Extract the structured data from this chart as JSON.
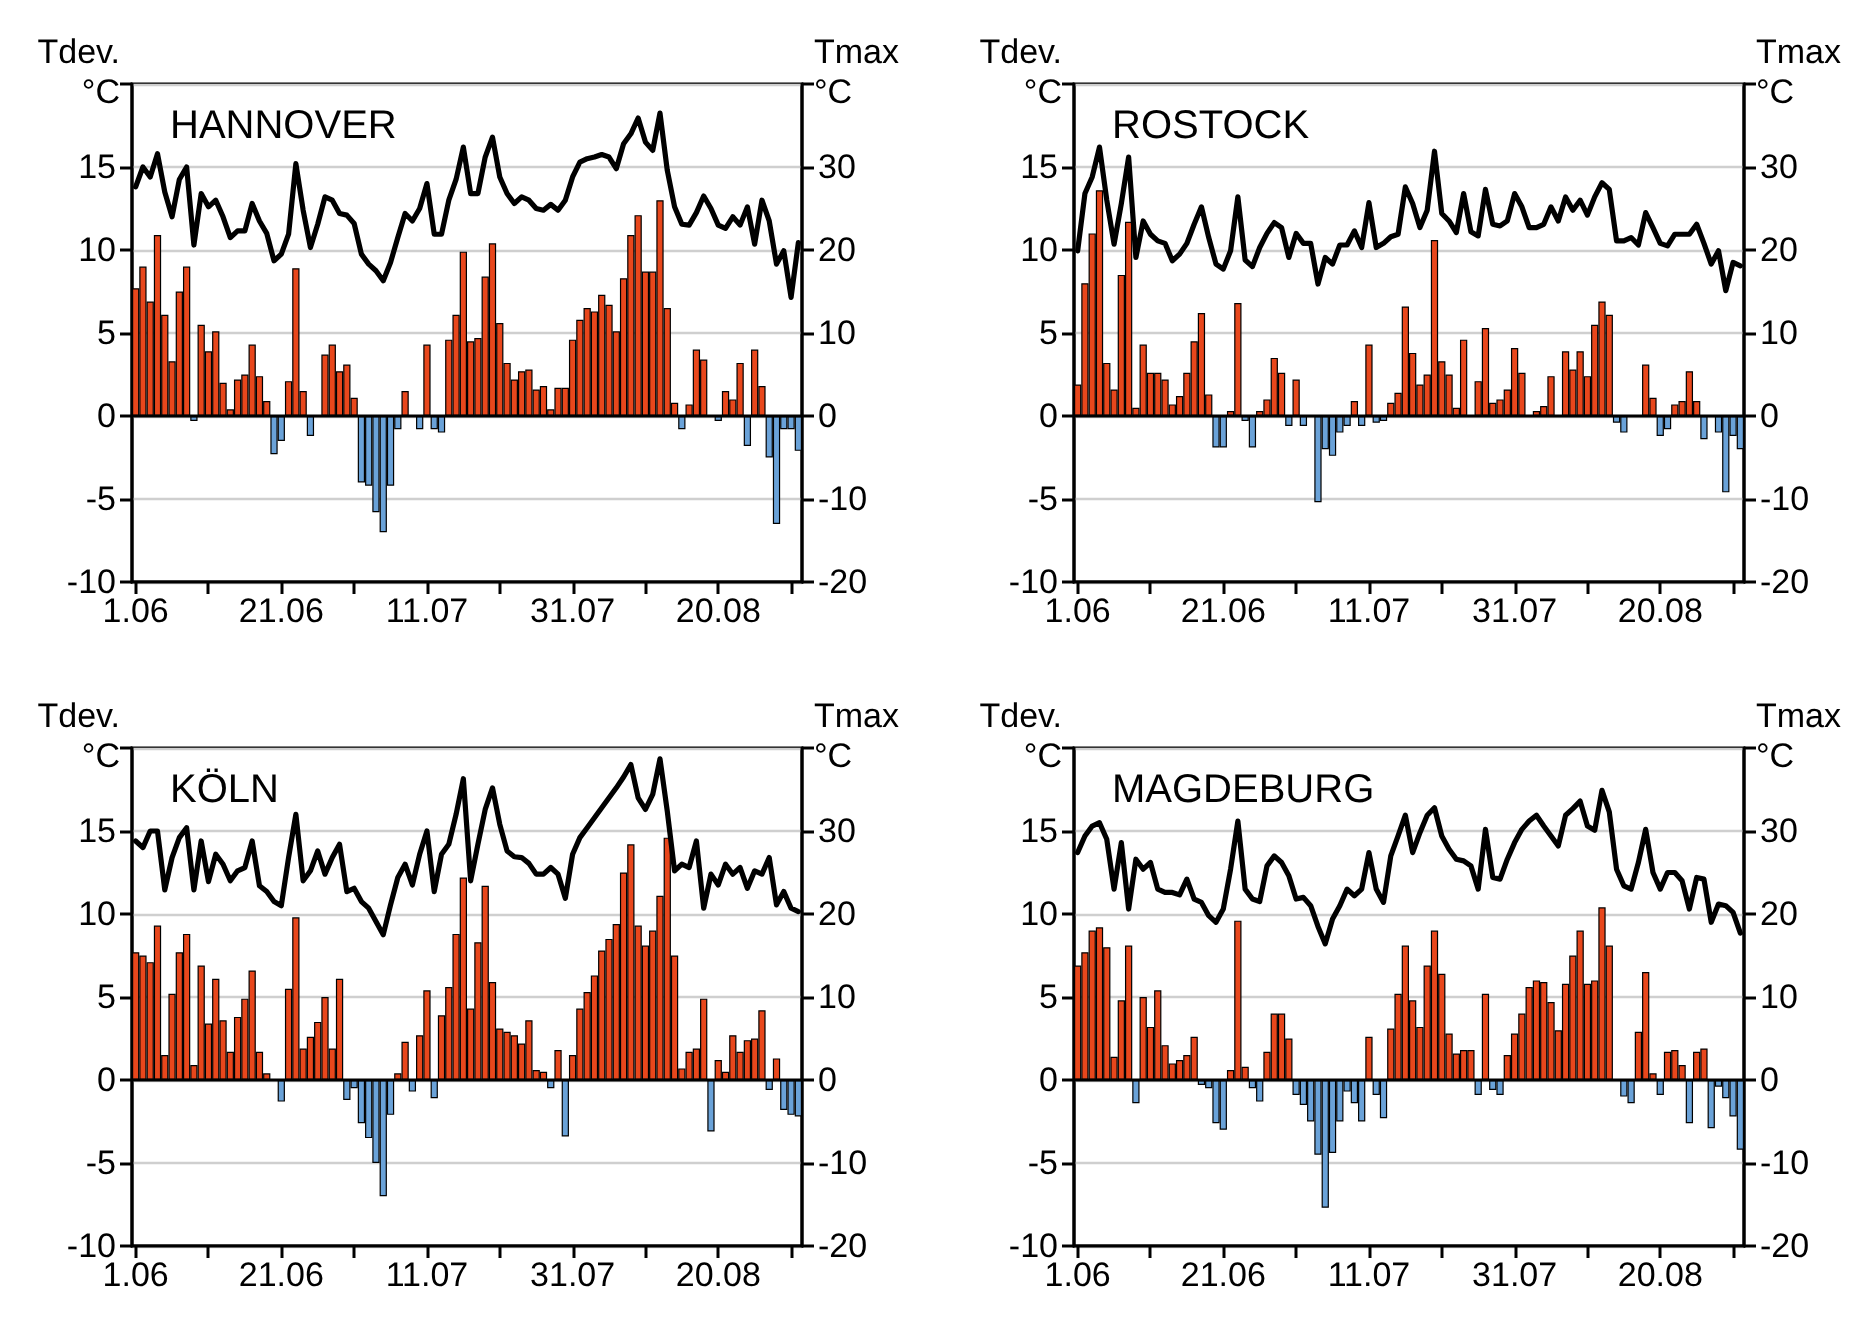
{
  "chart_data": [
    {
      "type": "bar",
      "title": "HANNOVER",
      "ylabel": "Tdev.\n°C",
      "y2label": "Tmax\n°C",
      "stacked": true,
      "grid": "y",
      "categories": [
        "1.06",
        null,
        null,
        null,
        null,
        null,
        null,
        null,
        null,
        null,
        null,
        null,
        null,
        null,
        null,
        null,
        null,
        null,
        null,
        null,
        "21.06",
        null,
        null,
        null,
        null,
        null,
        null,
        null,
        null,
        null,
        null,
        null,
        null,
        null,
        null,
        null,
        null,
        null,
        null,
        null,
        "11.07",
        null,
        null,
        null,
        null,
        null,
        null,
        null,
        null,
        null,
        null,
        null,
        null,
        null,
        null,
        null,
        null,
        null,
        null,
        null,
        "31.07",
        null,
        null,
        null,
        null,
        null,
        null,
        null,
        null,
        null,
        null,
        null,
        null,
        null,
        null,
        null,
        null,
        null,
        null,
        null,
        "20.08",
        null,
        null,
        null,
        null,
        null,
        null,
        null,
        null,
        null,
        null,
        null
      ],
      "ylim": [
        -10,
        20
      ],
      "yticks": [
        -10,
        -5,
        0,
        5,
        10,
        15
      ],
      "y2lim": [
        -20,
        40
      ],
      "y2ticks": [
        -20,
        -10,
        0,
        10,
        20,
        30
      ],
      "ref_lines": [
        {
          "axis": "y",
          "value": 0,
          "color": "#000000"
        }
      ],
      "series": [
        {
          "color": "#e8471c",
          "values": [
            7.7,
            9.0,
            6.9,
            10.9,
            6.1,
            3.3,
            7.5,
            9.0,
            null,
            5.5,
            3.9,
            5.1,
            2.0,
            0.4,
            2.2,
            2.5,
            4.3,
            2.4,
            0.9,
            null,
            null,
            2.1,
            8.9,
            1.5,
            null,
            null,
            3.7,
            4.3,
            2.7,
            3.1,
            1.1,
            null,
            null,
            null,
            null,
            null,
            null,
            1.5,
            null,
            null,
            4.3,
            null,
            null,
            4.6,
            6.1,
            9.9,
            4.5,
            4.7,
            8.4,
            10.4,
            5.6,
            3.2,
            2.2,
            2.7,
            2.8,
            1.6,
            1.8,
            0.4,
            1.7,
            1.7,
            4.6,
            5.8,
            6.5,
            6.3,
            7.3,
            6.7,
            5.1,
            8.3,
            10.9,
            12.1,
            8.7,
            8.7,
            13.0,
            6.5,
            0.8,
            null,
            0.7,
            4.0,
            3.4,
            null,
            null,
            1.5,
            1.0,
            3.2,
            null,
            4.0,
            1.8,
            null,
            null,
            null,
            null,
            null
          ]
        },
        {
          "color": "#6aa2d8",
          "values": [
            null,
            null,
            null,
            null,
            null,
            null,
            null,
            null,
            -0.3,
            null,
            null,
            null,
            null,
            null,
            null,
            null,
            null,
            null,
            null,
            -2.3,
            -1.5,
            null,
            null,
            null,
            -1.2,
            null,
            null,
            null,
            null,
            null,
            null,
            -4.0,
            -4.2,
            -5.8,
            -7.0,
            -4.2,
            -0.8,
            null,
            null,
            -0.8,
            null,
            -0.8,
            -1.0,
            null,
            null,
            null,
            null,
            null,
            null,
            null,
            null,
            null,
            null,
            null,
            null,
            null,
            null,
            null,
            null,
            null,
            null,
            null,
            null,
            null,
            null,
            null,
            null,
            null,
            null,
            null,
            null,
            null,
            null,
            null,
            null,
            -0.8,
            null,
            null,
            null,
            null,
            -0.3,
            null,
            null,
            null,
            -1.8,
            null,
            null,
            -2.5,
            -6.5,
            -0.8,
            -0.8,
            -2.1
          ]
        },
        {
          "type": "line",
          "axis": "y2",
          "color": "#000000",
          "values": [
            27.6,
            30,
            28.8,
            31.6,
            27,
            24,
            28.5,
            30,
            20.6,
            26.8,
            25.2,
            26,
            24,
            21.5,
            22.3,
            22.3,
            25.6,
            23.5,
            22,
            18.7,
            19.5,
            21.9,
            30.4,
            24.8,
            20.3,
            23.1,
            26.4,
            26,
            24.4,
            24.2,
            23.2,
            19.5,
            18.3,
            17.5,
            16.3,
            18.5,
            21.5,
            24.4,
            23.5,
            25,
            28,
            21.9,
            21.9,
            26,
            28.5,
            32.4,
            26.8,
            26.8,
            31.2,
            33.6,
            28.8,
            26.8,
            25.6,
            26.4,
            26,
            25,
            24.8,
            25.5,
            24.8,
            26,
            28.8,
            30.6,
            31,
            31.2,
            31.5,
            31.2,
            29.8,
            32.8,
            34,
            35.9,
            33,
            32,
            36.5,
            29.6,
            25.2,
            23.1,
            23,
            24.5,
            26.5,
            25,
            23,
            22.6,
            24,
            23,
            25.2,
            20.7,
            26,
            23.5,
            18.3,
            19.9,
            14.3,
            20.9
          ]
        }
      ]
    },
    {
      "type": "bar",
      "title": "ROSTOCK",
      "ylabel": "Tdev.\n°C",
      "y2label": "Tmax\n°C",
      "stacked": true,
      "grid": "y",
      "categories": [
        "1.06",
        null,
        null,
        null,
        null,
        null,
        null,
        null,
        null,
        null,
        null,
        null,
        null,
        null,
        null,
        null,
        null,
        null,
        null,
        null,
        "21.06",
        null,
        null,
        null,
        null,
        null,
        null,
        null,
        null,
        null,
        null,
        null,
        null,
        null,
        null,
        null,
        null,
        null,
        null,
        null,
        "11.07",
        null,
        null,
        null,
        null,
        null,
        null,
        null,
        null,
        null,
        null,
        null,
        null,
        null,
        null,
        null,
        null,
        null,
        null,
        null,
        "31.07",
        null,
        null,
        null,
        null,
        null,
        null,
        null,
        null,
        null,
        null,
        null,
        null,
        null,
        null,
        null,
        null,
        null,
        null,
        null,
        "20.08",
        null,
        null,
        null,
        null,
        null,
        null,
        null,
        null,
        null,
        null,
        null
      ],
      "ylim": [
        -10,
        20
      ],
      "yticks": [
        -10,
        -5,
        0,
        5,
        10,
        15
      ],
      "y2lim": [
        -20,
        40
      ],
      "y2ticks": [
        -20,
        -10,
        0,
        10,
        20,
        30
      ],
      "ref_lines": [
        {
          "axis": "y",
          "value": 0,
          "color": "#000000"
        }
      ],
      "series": [
        {
          "color": "#e8471c",
          "values": [
            1.9,
            8.0,
            11.0,
            13.6,
            3.2,
            1.6,
            8.5,
            11.7,
            0.5,
            4.3,
            2.6,
            2.6,
            2.2,
            0.7,
            1.2,
            2.6,
            4.5,
            6.2,
            1.3,
            null,
            null,
            0.3,
            6.8,
            null,
            null,
            0.3,
            1.0,
            3.5,
            2.6,
            null,
            2.2,
            null,
            null,
            null,
            null,
            null,
            null,
            null,
            0.9,
            null,
            4.3,
            null,
            null,
            0.8,
            1.4,
            6.6,
            3.8,
            1.9,
            2.5,
            10.6,
            3.3,
            2.5,
            0.5,
            4.6,
            null,
            2.1,
            5.3,
            0.8,
            1.0,
            1.6,
            4.1,
            2.6,
            null,
            0.3,
            0.6,
            2.4,
            null,
            3.9,
            2.8,
            3.9,
            2.4,
            5.5,
            6.9,
            6.1,
            null,
            null,
            null,
            null,
            3.1,
            1.1,
            null,
            null,
            0.7,
            0.9,
            2.7,
            0.9,
            null,
            null,
            null,
            null,
            null,
            null
          ]
        },
        {
          "color": "#6aa2d8",
          "values": [
            null,
            null,
            null,
            null,
            null,
            null,
            null,
            null,
            null,
            null,
            null,
            null,
            null,
            null,
            null,
            null,
            null,
            null,
            null,
            -1.9,
            -1.9,
            null,
            null,
            -0.3,
            -1.9,
            null,
            null,
            null,
            null,
            -0.6,
            null,
            -0.6,
            null,
            -5.2,
            -2.0,
            -2.4,
            -1.0,
            -0.6,
            null,
            -0.6,
            null,
            -0.4,
            -0.3,
            null,
            null,
            null,
            null,
            null,
            null,
            null,
            null,
            null,
            null,
            null,
            null,
            null,
            null,
            null,
            null,
            null,
            null,
            null,
            null,
            null,
            null,
            null,
            null,
            null,
            null,
            null,
            null,
            null,
            null,
            null,
            -0.4,
            -1.0,
            null,
            null,
            null,
            null,
            -1.2,
            -0.8,
            null,
            null,
            null,
            null,
            -1.4,
            null,
            -1.0,
            -4.6,
            -1.2,
            -2.0
          ]
        },
        {
          "type": "line",
          "axis": "y2",
          "color": "#000000",
          "values": [
            19.9,
            26.8,
            28.8,
            32.4,
            26,
            20.7,
            25.6,
            31.2,
            19.1,
            23.5,
            21.9,
            21.1,
            20.8,
            18.7,
            19.5,
            20.8,
            23.1,
            25.2,
            21.5,
            18.3,
            17.7,
            19.9,
            26.4,
            18.8,
            18,
            20.3,
            22,
            23.3,
            22.7,
            19.1,
            22,
            20.8,
            20.8,
            15.9,
            19.1,
            18.3,
            20.6,
            20.6,
            22.3,
            20.3,
            25.7,
            20.3,
            20.8,
            21.6,
            21.9,
            27.6,
            25.6,
            22.7,
            24.8,
            31.9,
            24.4,
            23.5,
            22.1,
            26.8,
            22.2,
            21.7,
            27.3,
            23.1,
            22.9,
            23.5,
            26.8,
            25.2,
            22.7,
            22.7,
            23.1,
            25.2,
            23.5,
            26.4,
            24.8,
            26,
            24.2,
            26.4,
            28.1,
            27.3,
            21.1,
            21.1,
            21.5,
            20.6,
            24.5,
            22.7,
            20.8,
            20.5,
            21.9,
            21.9,
            21.9,
            23.1,
            20.8,
            18.3,
            19.9,
            15.1,
            18.5,
            18.1
          ]
        }
      ]
    },
    {
      "type": "bar",
      "title": "KÖLN",
      "ylabel": "Tdev.\n°C",
      "y2label": "Tmax\n°C",
      "stacked": true,
      "grid": "y",
      "categories": [
        "1.06",
        null,
        null,
        null,
        null,
        null,
        null,
        null,
        null,
        null,
        null,
        null,
        null,
        null,
        null,
        null,
        null,
        null,
        null,
        null,
        "21.06",
        null,
        null,
        null,
        null,
        null,
        null,
        null,
        null,
        null,
        null,
        null,
        null,
        null,
        null,
        null,
        null,
        null,
        null,
        null,
        "11.07",
        null,
        null,
        null,
        null,
        null,
        null,
        null,
        null,
        null,
        null,
        null,
        null,
        null,
        null,
        null,
        null,
        null,
        null,
        null,
        "31.07",
        null,
        null,
        null,
        null,
        null,
        null,
        null,
        null,
        null,
        null,
        null,
        null,
        null,
        null,
        null,
        null,
        null,
        null,
        null,
        "20.08",
        null,
        null,
        null,
        null,
        null,
        null,
        null,
        null,
        null,
        null,
        null
      ],
      "ylim": [
        -10,
        20
      ],
      "yticks": [
        -10,
        -5,
        0,
        5,
        10,
        15
      ],
      "y2lim": [
        -20,
        40
      ],
      "y2ticks": [
        -20,
        -10,
        0,
        10,
        20,
        30
      ],
      "ref_lines": [
        {
          "axis": "y",
          "value": 0,
          "color": "#000000"
        }
      ],
      "series": [
        {
          "color": "#e8471c",
          "values": [
            7.7,
            7.5,
            7.1,
            9.3,
            1.5,
            5.2,
            7.7,
            8.8,
            0.9,
            6.9,
            3.4,
            6.1,
            3.6,
            1.7,
            3.8,
            4.9,
            6.6,
            1.7,
            0.4,
            null,
            null,
            5.5,
            9.8,
            1.9,
            2.6,
            3.5,
            5.0,
            1.9,
            6.1,
            null,
            null,
            null,
            null,
            null,
            null,
            null,
            0.4,
            2.3,
            null,
            2.7,
            5.4,
            null,
            3.9,
            5.6,
            8.8,
            12.2,
            4.3,
            8.3,
            11.7,
            5.9,
            3.1,
            2.9,
            2.7,
            2.2,
            3.6,
            0.6,
            0.5,
            null,
            1.8,
            null,
            1.5,
            4.3,
            5.3,
            6.3,
            7.8,
            8.5,
            9.4,
            12.5,
            14.2,
            9.3,
            8.1,
            9.0,
            11.1,
            14.6,
            7.5,
            0.7,
            1.7,
            1.9,
            4.9,
            null,
            1.2,
            0.5,
            2.7,
            1.7,
            2.4,
            2.5,
            4.2,
            null,
            1.3,
            null,
            null,
            null
          ]
        },
        {
          "color": "#6aa2d8",
          "values": [
            null,
            null,
            null,
            null,
            null,
            null,
            null,
            null,
            null,
            null,
            null,
            null,
            null,
            null,
            null,
            null,
            null,
            null,
            null,
            null,
            -1.3,
            null,
            null,
            null,
            null,
            null,
            null,
            null,
            null,
            -1.2,
            -0.5,
            -2.6,
            -3.5,
            -5.0,
            -7.0,
            -2.1,
            null,
            null,
            -0.7,
            null,
            null,
            -1.1,
            null,
            null,
            null,
            null,
            null,
            null,
            null,
            null,
            null,
            null,
            null,
            null,
            null,
            null,
            null,
            -0.5,
            null,
            -3.4,
            null,
            null,
            null,
            null,
            null,
            null,
            null,
            null,
            null,
            null,
            null,
            null,
            null,
            null,
            null,
            null,
            null,
            null,
            null,
            -3.1,
            null,
            null,
            null,
            null,
            null,
            null,
            null,
            -0.6,
            null,
            -1.8,
            -2.1,
            -2.2
          ]
        },
        {
          "type": "line",
          "axis": "y2",
          "color": "#000000",
          "values": [
            28.8,
            28,
            30,
            30,
            22.9,
            26.8,
            29.2,
            30.4,
            22.9,
            28.8,
            23.9,
            27.2,
            26,
            24,
            25.2,
            25.6,
            28.8,
            23.4,
            22.7,
            21.5,
            21,
            26.8,
            32,
            24,
            25.2,
            27.6,
            24.8,
            26.8,
            28.4,
            22.7,
            23.1,
            21.5,
            20.7,
            19.1,
            17.5,
            21.1,
            24.4,
            26,
            23.5,
            27.2,
            30,
            22.7,
            27.2,
            28.4,
            32,
            36.3,
            24,
            28.4,
            32.6,
            35.2,
            30.8,
            27.6,
            26.9,
            26.8,
            26.1,
            24.8,
            24.8,
            25.6,
            24.8,
            21.9,
            27.2,
            29.2,
            30.4,
            31.6,
            32.8,
            34,
            35.2,
            36.5,
            38,
            34,
            32.6,
            34.4,
            38.7,
            32.4,
            25.2,
            26,
            25.6,
            28.8,
            20.7,
            24.8,
            23.5,
            26,
            24.8,
            25.6,
            23.1,
            25.2,
            24.8,
            26.8,
            21.1,
            22.7,
            20.7,
            20.3
          ]
        }
      ]
    },
    {
      "type": "bar",
      "title": "MAGDEBURG",
      "ylabel": "Tdev.\n°C",
      "y2label": "Tmax\n°C",
      "stacked": true,
      "grid": "y",
      "categories": [
        "1.06",
        null,
        null,
        null,
        null,
        null,
        null,
        null,
        null,
        null,
        null,
        null,
        null,
        null,
        null,
        null,
        null,
        null,
        null,
        null,
        "21.06",
        null,
        null,
        null,
        null,
        null,
        null,
        null,
        null,
        null,
        null,
        null,
        null,
        null,
        null,
        null,
        null,
        null,
        null,
        null,
        "11.07",
        null,
        null,
        null,
        null,
        null,
        null,
        null,
        null,
        null,
        null,
        null,
        null,
        null,
        null,
        null,
        null,
        null,
        null,
        null,
        "31.07",
        null,
        null,
        null,
        null,
        null,
        null,
        null,
        null,
        null,
        null,
        null,
        null,
        null,
        null,
        null,
        null,
        null,
        null,
        null,
        "20.08",
        null,
        null,
        null,
        null,
        null,
        null,
        null,
        null,
        null,
        null,
        null
      ],
      "ylim": [
        -10,
        20
      ],
      "yticks": [
        -10,
        -5,
        0,
        5,
        10,
        15
      ],
      "y2lim": [
        -20,
        40
      ],
      "y2ticks": [
        -20,
        -10,
        0,
        10,
        20,
        30
      ],
      "ref_lines": [
        {
          "axis": "y",
          "value": 0,
          "color": "#000000"
        }
      ],
      "series": [
        {
          "color": "#e8471c",
          "values": [
            6.9,
            7.7,
            9.0,
            9.2,
            8.0,
            1.4,
            4.8,
            8.1,
            null,
            5.0,
            3.2,
            5.4,
            2.1,
            1.0,
            1.2,
            1.5,
            2.6,
            null,
            null,
            null,
            null,
            0.6,
            9.6,
            0.8,
            null,
            null,
            1.7,
            4.0,
            4.0,
            2.5,
            null,
            null,
            null,
            null,
            null,
            null,
            null,
            null,
            null,
            null,
            2.6,
            null,
            null,
            3.1,
            5.2,
            8.1,
            4.8,
            3.2,
            6.9,
            9.0,
            6.4,
            2.8,
            1.6,
            1.8,
            1.8,
            null,
            5.2,
            null,
            null,
            1.5,
            2.8,
            4.0,
            5.6,
            6.0,
            5.9,
            4.7,
            3.0,
            5.8,
            7.5,
            9.0,
            5.8,
            6.0,
            10.4,
            8.1,
            null,
            null,
            null,
            2.9,
            6.5,
            0.4,
            null,
            1.7,
            1.8,
            0.9,
            null,
            1.7,
            1.9,
            null,
            null,
            null,
            null,
            null
          ]
        },
        {
          "color": "#6aa2d8",
          "values": [
            null,
            null,
            null,
            null,
            null,
            null,
            null,
            null,
            -1.4,
            null,
            null,
            null,
            null,
            null,
            null,
            null,
            null,
            -0.3,
            -0.5,
            -2.6,
            -3.0,
            null,
            null,
            null,
            -0.5,
            -1.3,
            null,
            null,
            null,
            null,
            -0.9,
            -1.5,
            -2.5,
            -4.5,
            -7.7,
            -4.4,
            -2.5,
            -0.7,
            -1.4,
            -2.5,
            null,
            -0.9,
            -2.3,
            null,
            null,
            null,
            null,
            null,
            null,
            null,
            null,
            null,
            null,
            null,
            null,
            -0.9,
            null,
            -0.6,
            -0.9,
            null,
            null,
            null,
            null,
            null,
            null,
            null,
            null,
            null,
            null,
            null,
            null,
            null,
            null,
            null,
            null,
            -1.0,
            -1.4,
            null,
            null,
            null,
            -0.9,
            null,
            null,
            null,
            -2.6,
            null,
            null,
            -2.9,
            -0.4,
            -1.1,
            -2.2,
            -4.2
          ]
        },
        {
          "type": "line",
          "axis": "y2",
          "color": "#000000",
          "values": [
            27.4,
            29.4,
            30.6,
            31,
            29,
            23,
            28.6,
            20.6,
            26.6,
            25.4,
            26.2,
            23,
            22.6,
            22.6,
            22.3,
            24.2,
            21.8,
            21.4,
            19.8,
            19,
            20.6,
            25.4,
            31.2,
            23,
            21.8,
            21.5,
            25.8,
            27,
            26.2,
            24.6,
            21.8,
            22,
            21,
            18.5,
            16.4,
            19.4,
            21,
            23,
            22.2,
            23,
            27.4,
            23,
            21.4,
            27,
            29.4,
            31.9,
            27.4,
            29.8,
            31.9,
            32.8,
            29.4,
            27.8,
            26.6,
            26.4,
            25.8,
            23,
            30.2,
            24.4,
            24.2,
            26.6,
            28.6,
            30.2,
            31.2,
            31.9,
            30.6,
            29.4,
            28.2,
            31.9,
            32.7,
            33.6,
            30.6,
            30.1,
            34.9,
            32.3,
            25.4,
            23.4,
            23,
            26.2,
            30.2,
            25,
            23,
            25,
            25,
            24,
            20.6,
            24.4,
            24.2,
            19,
            21.2,
            21,
            20.2,
            17.7
          ]
        }
      ]
    }
  ]
}
